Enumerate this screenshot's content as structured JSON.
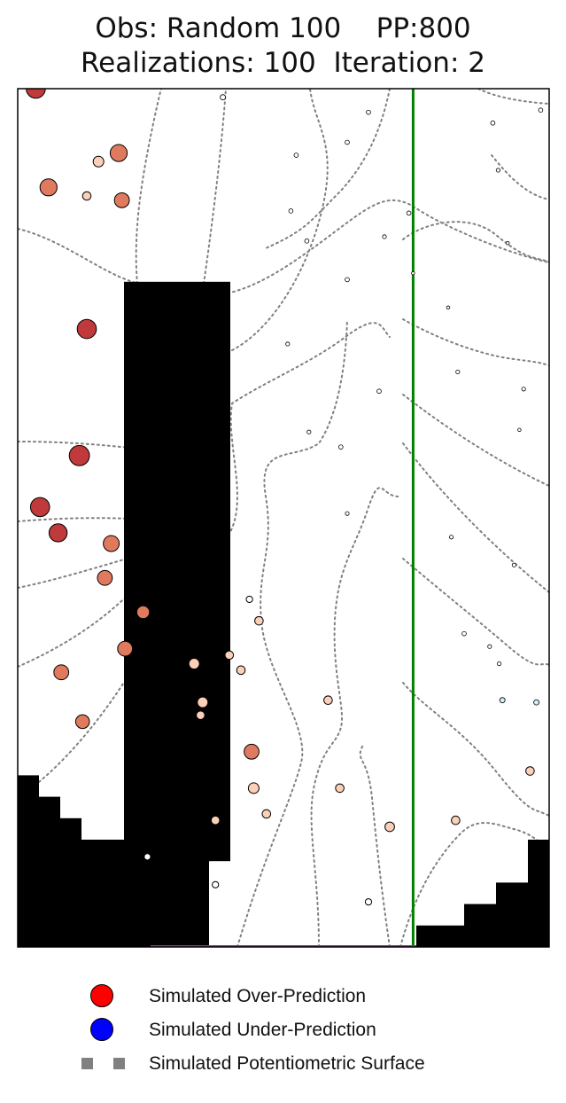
{
  "title": {
    "line1": "Obs: Random 100    PP:800",
    "line2": "Realizations: 100  Iteration: 2"
  },
  "legend": [
    {
      "label": "Simulated Over-Prediction",
      "marker": "circle",
      "color": "#ff0000"
    },
    {
      "label": "Simulated Under-Prediction",
      "marker": "circle",
      "color": "#0000ff"
    },
    {
      "label": "Simulated Potentiometric Surface",
      "marker": "dotted-line",
      "color": "#808080"
    }
  ],
  "colors": {
    "inactive": "#000000",
    "river": "#008000",
    "contour": "#808080",
    "over_strong": "#c0393b",
    "over_mid": "#e07a5f",
    "over_light": "#fcd0b8",
    "under_light": "#d6ecf7"
  },
  "chart_data": {
    "type": "scatter",
    "title": "Obs: Random 100    PP:800 / Realizations: 100  Iteration: 2",
    "xlabel": "",
    "ylabel": "",
    "grid": false,
    "axes_ticks": false,
    "legend_position": "bottom",
    "model_grid": {
      "cols": 25,
      "rows": 40
    },
    "river_column": 18.6,
    "inactive_blocks": [
      {
        "x0": 5,
        "x1": 9,
        "y0": 0,
        "y1": 13
      },
      {
        "x0": 5,
        "x1": 10,
        "y0": 4,
        "y1": 31
      },
      {
        "x0": 6,
        "x1": 7,
        "y0": 0,
        "y1": 1
      },
      {
        "x0": 0,
        "x1": 1,
        "y0": 0,
        "y1": 8
      },
      {
        "x0": 1,
        "x1": 2,
        "y0": 0,
        "y1": 7
      },
      {
        "x0": 2,
        "x1": 3,
        "y0": 0,
        "y1": 6
      },
      {
        "x0": 3,
        "x1": 5,
        "y0": 0,
        "y1": 5
      },
      {
        "x0": 5,
        "x1": 6,
        "y0": 0,
        "y1": 3
      },
      {
        "x0": 18.75,
        "x1": 21,
        "y0": 0,
        "y1": 1
      },
      {
        "x0": 21,
        "x1": 22.5,
        "y0": 0,
        "y1": 2
      },
      {
        "x0": 22.5,
        "x1": 24,
        "y0": 0,
        "y1": 3
      },
      {
        "x0": 24,
        "x1": 25,
        "y0": 0,
        "y1": 5
      }
    ],
    "residuals": [
      {
        "x": 0.85,
        "y": 40.0,
        "r": 0.9
      },
      {
        "x": 4.75,
        "y": 37.0,
        "r": 0.8
      },
      {
        "x": 1.45,
        "y": 35.4,
        "r": 0.8
      },
      {
        "x": 4.9,
        "y": 34.8,
        "r": 0.7
      },
      {
        "x": 3.25,
        "y": 35.0,
        "r": 0.4
      },
      {
        "x": 3.8,
        "y": 36.6,
        "r": 0.5
      },
      {
        "x": 3.25,
        "y": 28.8,
        "r": 0.9
      },
      {
        "x": 2.9,
        "y": 22.9,
        "r": 0.95
      },
      {
        "x": 1.05,
        "y": 20.5,
        "r": 0.9
      },
      {
        "x": 1.9,
        "y": 19.3,
        "r": 0.85
      },
      {
        "x": 4.4,
        "y": 18.8,
        "r": 0.75
      },
      {
        "x": 4.1,
        "y": 17.2,
        "r": 0.7
      },
      {
        "x": 5.9,
        "y": 15.6,
        "r": 0.6
      },
      {
        "x": 5.05,
        "y": 13.9,
        "r": 0.7
      },
      {
        "x": 2.05,
        "y": 12.8,
        "r": 0.7
      },
      {
        "x": 3.05,
        "y": 10.5,
        "r": 0.65
      },
      {
        "x": 8.3,
        "y": 13.2,
        "r": 0.5
      },
      {
        "x": 9.95,
        "y": 13.6,
        "r": 0.4
      },
      {
        "x": 11.35,
        "y": 15.2,
        "r": 0.4
      },
      {
        "x": 10.9,
        "y": 16.2,
        "r": 0.3
      },
      {
        "x": 11.0,
        "y": 9.1,
        "r": 0.7
      },
      {
        "x": 8.6,
        "y": 10.8,
        "r": 0.4
      },
      {
        "x": 11.1,
        "y": 7.4,
        "r": 0.5
      },
      {
        "x": 8.7,
        "y": 11.4,
        "r": 0.5
      },
      {
        "x": 14.6,
        "y": 11.5,
        "r": 0.4
      },
      {
        "x": 10.5,
        "y": 12.9,
        "r": 0.4
      },
      {
        "x": 15.15,
        "y": 7.4,
        "r": 0.4
      },
      {
        "x": 9.3,
        "y": 5.9,
        "r": 0.4
      },
      {
        "x": 11.7,
        "y": 6.2,
        "r": 0.4
      },
      {
        "x": 20.6,
        "y": 5.9,
        "r": 0.4
      },
      {
        "x": 24.1,
        "y": 8.2,
        "r": 0.4
      },
      {
        "x": 17.5,
        "y": 5.6,
        "r": 0.45
      },
      {
        "x": 6.1,
        "y": 4.2,
        "r": 0.3
      },
      {
        "x": 9.3,
        "y": 2.9,
        "r": 0.3
      },
      {
        "x": 16.5,
        "y": 2.1,
        "r": 0.3
      },
      {
        "x": 24.4,
        "y": 11.4,
        "r": 0.25,
        "under": true
      },
      {
        "x": 22.8,
        "y": 11.5,
        "r": 0.25,
        "under": true
      },
      {
        "x": 9.65,
        "y": 39.6,
        "r": 0.25
      },
      {
        "x": 16.5,
        "y": 38.9,
        "r": 0.2
      },
      {
        "x": 15.5,
        "y": 37.5,
        "r": 0.2
      },
      {
        "x": 22.35,
        "y": 38.4,
        "r": 0.2
      },
      {
        "x": 24.6,
        "y": 39.0,
        "r": 0.2
      },
      {
        "x": 18.4,
        "y": 34.2,
        "r": 0.2
      },
      {
        "x": 13.6,
        "y": 32.9,
        "r": 0.2
      },
      {
        "x": 15.5,
        "y": 31.1,
        "r": 0.2
      },
      {
        "x": 17.0,
        "y": 25.9,
        "r": 0.2
      },
      {
        "x": 15.2,
        "y": 23.3,
        "r": 0.2
      },
      {
        "x": 15.5,
        "y": 20.2,
        "r": 0.18
      },
      {
        "x": 12.7,
        "y": 28.1,
        "r": 0.18
      },
      {
        "x": 13.7,
        "y": 24.0,
        "r": 0.18
      },
      {
        "x": 20.7,
        "y": 26.8,
        "r": 0.18
      },
      {
        "x": 23.8,
        "y": 26.0,
        "r": 0.18
      },
      {
        "x": 23.6,
        "y": 24.1,
        "r": 0.15
      },
      {
        "x": 22.6,
        "y": 36.2,
        "r": 0.18
      },
      {
        "x": 20.4,
        "y": 19.1,
        "r": 0.18
      },
      {
        "x": 23.35,
        "y": 17.8,
        "r": 0.18
      },
      {
        "x": 22.65,
        "y": 13.2,
        "r": 0.18
      },
      {
        "x": 21.0,
        "y": 14.6,
        "r": 0.2
      },
      {
        "x": 22.2,
        "y": 14.0,
        "r": 0.18
      },
      {
        "x": 12.85,
        "y": 34.3,
        "r": 0.2
      },
      {
        "x": 13.1,
        "y": 36.9,
        "r": 0.2
      },
      {
        "x": 17.25,
        "y": 33.1,
        "r": 0.18
      },
      {
        "x": 18.6,
        "y": 31.4,
        "r": 0.15
      },
      {
        "x": 20.25,
        "y": 29.8,
        "r": 0.15
      },
      {
        "x": 23.05,
        "y": 32.8,
        "r": 0.15
      }
    ]
  }
}
